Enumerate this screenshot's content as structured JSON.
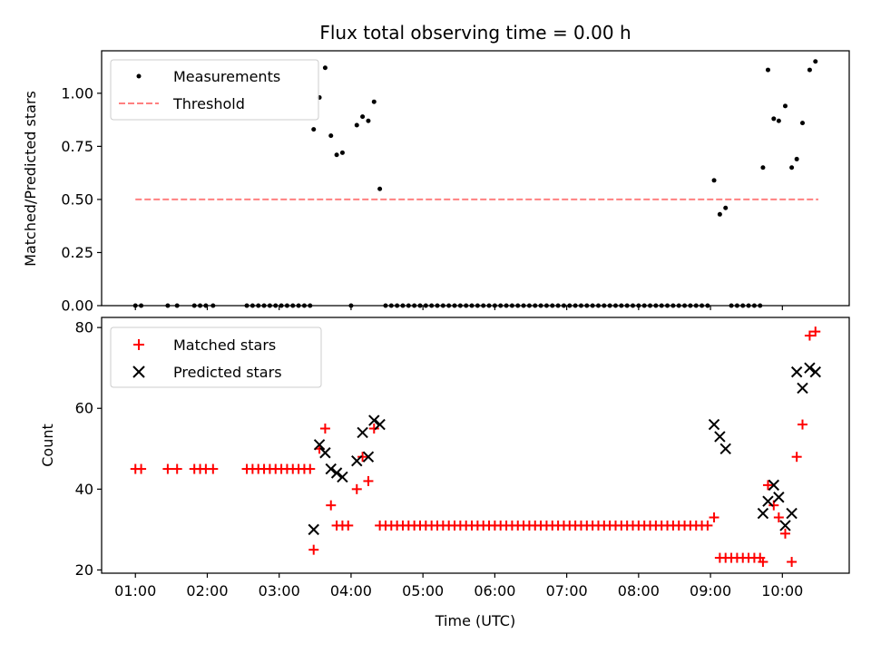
{
  "figure": {
    "title": "Flux total observing time = 0.00 h",
    "xlabel": "Time (UTC)",
    "x_tick_labels": [
      "01:00",
      "02:00",
      "03:00",
      "04:00",
      "05:00",
      "06:00",
      "07:00",
      "08:00",
      "09:00",
      "10:00"
    ]
  },
  "chart_data": [
    {
      "type": "scatter",
      "name": "ratio-panel",
      "ylabel": "Matched/Predicted stars",
      "xlim": [
        0.53,
        10.93
      ],
      "ylim": [
        0,
        1.2
      ],
      "y_ticks": [
        0,
        0.25,
        0.5,
        0.75,
        1.0
      ],
      "y_tick_labels": [
        "0.00",
        "0.25",
        "0.50",
        "0.75",
        "1.00"
      ],
      "x_tick_marks_only": true,
      "legend": {
        "placement": "upper-left",
        "entries": [
          "Measurements",
          "Threshold"
        ]
      },
      "colors": {
        "Measurements": "#000000",
        "Threshold": "#ff8080"
      },
      "series": [
        {
          "name": "Measurements",
          "marker": "dot",
          "points": [
            [
              1.0,
              0
            ],
            [
              1.08,
              0
            ],
            [
              1.45,
              0
            ],
            [
              1.58,
              0
            ],
            [
              1.82,
              0
            ],
            [
              1.9,
              0
            ],
            [
              1.98,
              0
            ],
            [
              2.08,
              0
            ],
            [
              2.55,
              0
            ],
            [
              2.63,
              0
            ],
            [
              2.71,
              0
            ],
            [
              2.79,
              0
            ],
            [
              2.87,
              0
            ],
            [
              2.95,
              0
            ],
            [
              3.03,
              0
            ],
            [
              3.11,
              0
            ],
            [
              3.19,
              0
            ],
            [
              3.27,
              0
            ],
            [
              3.35,
              0
            ],
            [
              3.43,
              0
            ],
            [
              3.48,
              0.83
            ],
            [
              3.56,
              0.98
            ],
            [
              3.64,
              1.12
            ],
            [
              3.72,
              0.8
            ],
            [
              3.8,
              0.71
            ],
            [
              3.88,
              0.72
            ],
            [
              4.0,
              0
            ],
            [
              4.08,
              0.85
            ],
            [
              4.16,
              0.89
            ],
            [
              4.24,
              0.87
            ],
            [
              4.32,
              0.96
            ],
            [
              4.4,
              0.55
            ],
            [
              4.48,
              0
            ],
            [
              4.56,
              0
            ],
            [
              4.64,
              0
            ],
            [
              4.72,
              0
            ],
            [
              4.8,
              0
            ],
            [
              4.88,
              0
            ],
            [
              4.96,
              0
            ],
            [
              5.04,
              0
            ],
            [
              5.12,
              0
            ],
            [
              5.2,
              0
            ],
            [
              5.28,
              0
            ],
            [
              5.36,
              0
            ],
            [
              5.44,
              0
            ],
            [
              5.52,
              0
            ],
            [
              5.6,
              0
            ],
            [
              5.68,
              0
            ],
            [
              5.76,
              0
            ],
            [
              5.84,
              0
            ],
            [
              5.92,
              0
            ],
            [
              6.0,
              0
            ],
            [
              6.08,
              0
            ],
            [
              6.16,
              0
            ],
            [
              6.24,
              0
            ],
            [
              6.32,
              0
            ],
            [
              6.4,
              0
            ],
            [
              6.48,
              0
            ],
            [
              6.56,
              0
            ],
            [
              6.64,
              0
            ],
            [
              6.72,
              0
            ],
            [
              6.8,
              0
            ],
            [
              6.88,
              0
            ],
            [
              6.96,
              0
            ],
            [
              7.04,
              0
            ],
            [
              7.12,
              0
            ],
            [
              7.2,
              0
            ],
            [
              7.28,
              0
            ],
            [
              7.36,
              0
            ],
            [
              7.44,
              0
            ],
            [
              7.52,
              0
            ],
            [
              7.6,
              0
            ],
            [
              7.68,
              0
            ],
            [
              7.76,
              0
            ],
            [
              7.84,
              0
            ],
            [
              7.92,
              0
            ],
            [
              8.0,
              0
            ],
            [
              8.08,
              0
            ],
            [
              8.16,
              0
            ],
            [
              8.24,
              0
            ],
            [
              8.32,
              0
            ],
            [
              8.4,
              0
            ],
            [
              8.48,
              0
            ],
            [
              8.56,
              0
            ],
            [
              8.64,
              0
            ],
            [
              8.72,
              0
            ],
            [
              8.8,
              0
            ],
            [
              8.88,
              0
            ],
            [
              8.96,
              0
            ],
            [
              9.05,
              0.59
            ],
            [
              9.13,
              0.43
            ],
            [
              9.21,
              0.46
            ],
            [
              9.29,
              0
            ],
            [
              9.37,
              0
            ],
            [
              9.45,
              0
            ],
            [
              9.53,
              0
            ],
            [
              9.61,
              0
            ],
            [
              9.69,
              0
            ],
            [
              9.73,
              0.65
            ],
            [
              9.8,
              1.11
            ],
            [
              9.88,
              0.88
            ],
            [
              9.95,
              0.87
            ],
            [
              10.04,
              0.94
            ],
            [
              10.13,
              0.65
            ],
            [
              10.2,
              0.69
            ],
            [
              10.28,
              0.86
            ],
            [
              10.38,
              1.11
            ],
            [
              10.46,
              1.15
            ]
          ]
        },
        {
          "name": "Threshold",
          "marker": "dashed-line",
          "points": [
            [
              1.0,
              0.5
            ],
            [
              10.5,
              0.5
            ]
          ]
        }
      ]
    },
    {
      "type": "scatter",
      "name": "count-panel",
      "ylabel": "Count",
      "xlim": [
        0.53,
        10.93
      ],
      "ylim": [
        19.2,
        82.5
      ],
      "y_ticks": [
        20,
        40,
        60,
        80
      ],
      "y_tick_labels": [
        "20",
        "40",
        "60",
        "80"
      ],
      "legend": {
        "placement": "upper-left",
        "entries": [
          "Matched stars",
          "Predicted stars"
        ]
      },
      "colors": {
        "Matched stars": "#ff0000",
        "Predicted stars": "#000000"
      },
      "series": [
        {
          "name": "Matched stars",
          "marker": "plus",
          "points": [
            [
              1.0,
              45
            ],
            [
              1.08,
              45
            ],
            [
              1.45,
              45
            ],
            [
              1.58,
              45
            ],
            [
              1.82,
              45
            ],
            [
              1.9,
              45
            ],
            [
              1.98,
              45
            ],
            [
              2.08,
              45
            ],
            [
              2.55,
              45
            ],
            [
              2.63,
              45
            ],
            [
              2.71,
              45
            ],
            [
              2.79,
              45
            ],
            [
              2.87,
              45
            ],
            [
              2.95,
              45
            ],
            [
              3.03,
              45
            ],
            [
              3.11,
              45
            ],
            [
              3.19,
              45
            ],
            [
              3.27,
              45
            ],
            [
              3.35,
              45
            ],
            [
              3.43,
              45
            ],
            [
              3.48,
              25
            ],
            [
              3.56,
              50
            ],
            [
              3.64,
              55
            ],
            [
              3.72,
              36
            ],
            [
              3.8,
              31
            ],
            [
              3.88,
              31
            ],
            [
              3.96,
              31
            ],
            [
              4.08,
              40
            ],
            [
              4.16,
              48
            ],
            [
              4.24,
              42
            ],
            [
              4.32,
              55
            ],
            [
              4.4,
              31
            ],
            [
              4.48,
              31
            ],
            [
              4.56,
              31
            ],
            [
              4.64,
              31
            ],
            [
              4.72,
              31
            ],
            [
              4.8,
              31
            ],
            [
              4.88,
              31
            ],
            [
              4.96,
              31
            ],
            [
              5.04,
              31
            ],
            [
              5.12,
              31
            ],
            [
              5.2,
              31
            ],
            [
              5.28,
              31
            ],
            [
              5.36,
              31
            ],
            [
              5.44,
              31
            ],
            [
              5.52,
              31
            ],
            [
              5.6,
              31
            ],
            [
              5.68,
              31
            ],
            [
              5.76,
              31
            ],
            [
              5.84,
              31
            ],
            [
              5.92,
              31
            ],
            [
              6.0,
              31
            ],
            [
              6.08,
              31
            ],
            [
              6.16,
              31
            ],
            [
              6.24,
              31
            ],
            [
              6.32,
              31
            ],
            [
              6.4,
              31
            ],
            [
              6.48,
              31
            ],
            [
              6.56,
              31
            ],
            [
              6.64,
              31
            ],
            [
              6.72,
              31
            ],
            [
              6.8,
              31
            ],
            [
              6.88,
              31
            ],
            [
              6.96,
              31
            ],
            [
              7.04,
              31
            ],
            [
              7.12,
              31
            ],
            [
              7.2,
              31
            ],
            [
              7.28,
              31
            ],
            [
              7.36,
              31
            ],
            [
              7.44,
              31
            ],
            [
              7.52,
              31
            ],
            [
              7.6,
              31
            ],
            [
              7.68,
              31
            ],
            [
              7.76,
              31
            ],
            [
              7.84,
              31
            ],
            [
              7.92,
              31
            ],
            [
              8.0,
              31
            ],
            [
              8.08,
              31
            ],
            [
              8.16,
              31
            ],
            [
              8.24,
              31
            ],
            [
              8.32,
              31
            ],
            [
              8.4,
              31
            ],
            [
              8.48,
              31
            ],
            [
              8.56,
              31
            ],
            [
              8.64,
              31
            ],
            [
              8.72,
              31
            ],
            [
              8.8,
              31
            ],
            [
              8.88,
              31
            ],
            [
              8.96,
              31
            ],
            [
              9.05,
              33
            ],
            [
              9.13,
              23
            ],
            [
              9.21,
              23
            ],
            [
              9.29,
              23
            ],
            [
              9.37,
              23
            ],
            [
              9.45,
              23
            ],
            [
              9.53,
              23
            ],
            [
              9.61,
              23
            ],
            [
              9.69,
              23
            ],
            [
              9.73,
              22
            ],
            [
              9.8,
              41
            ],
            [
              9.88,
              36
            ],
            [
              9.95,
              33
            ],
            [
              10.04,
              29
            ],
            [
              10.13,
              22
            ],
            [
              10.2,
              48
            ],
            [
              10.28,
              56
            ],
            [
              10.38,
              78
            ],
            [
              10.46,
              79
            ]
          ]
        },
        {
          "name": "Predicted stars",
          "marker": "x",
          "points": [
            [
              3.48,
              30
            ],
            [
              3.56,
              51
            ],
            [
              3.64,
              49
            ],
            [
              3.72,
              45
            ],
            [
              3.8,
              44
            ],
            [
              3.88,
              43
            ],
            [
              4.08,
              47
            ],
            [
              4.16,
              54
            ],
            [
              4.24,
              48
            ],
            [
              4.32,
              57
            ],
            [
              4.4,
              56
            ],
            [
              9.05,
              56
            ],
            [
              9.13,
              53
            ],
            [
              9.21,
              50
            ],
            [
              9.73,
              34
            ],
            [
              9.8,
              37
            ],
            [
              9.88,
              41
            ],
            [
              9.95,
              38
            ],
            [
              10.04,
              31
            ],
            [
              10.13,
              34
            ],
            [
              10.2,
              69
            ],
            [
              10.28,
              65
            ],
            [
              10.38,
              70
            ],
            [
              10.46,
              69
            ]
          ]
        }
      ]
    }
  ]
}
